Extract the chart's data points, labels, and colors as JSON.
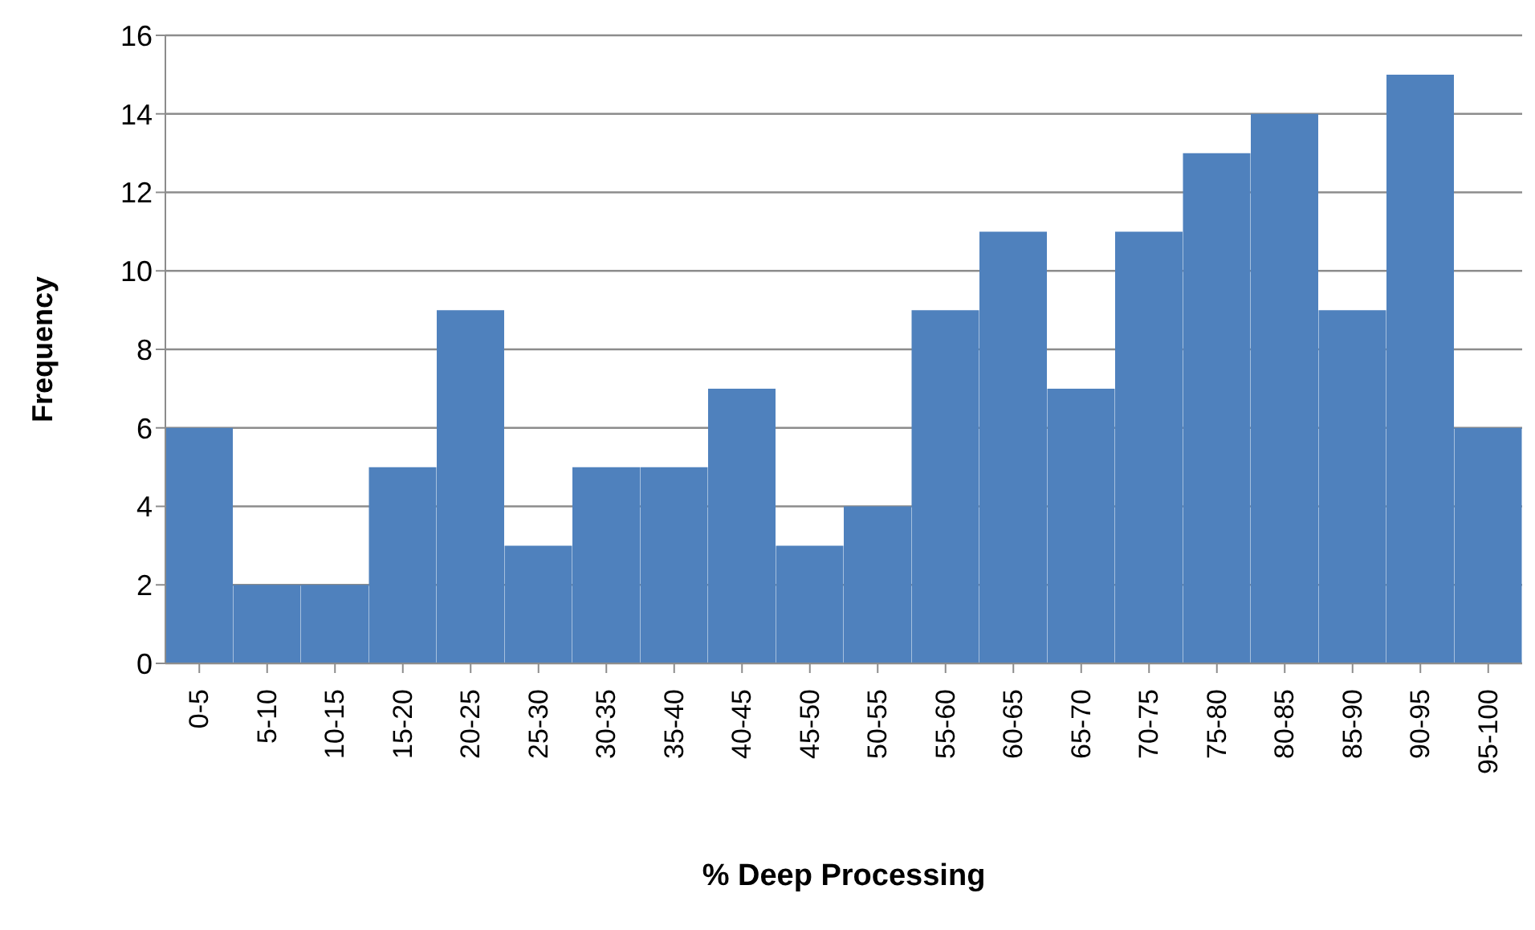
{
  "chart_data": {
    "type": "bar",
    "xlabel": "% Deep Processing",
    "ylabel": "Frequency",
    "categories": [
      "0-5",
      "5-10",
      "10-15",
      "15-20",
      "20-25",
      "25-30",
      "30-35",
      "35-40",
      "40-45",
      "45-50",
      "50-55",
      "55-60",
      "60-65",
      "65-70",
      "70-75",
      "75-80",
      "80-85",
      "85-90",
      "90-95",
      "95-100"
    ],
    "values": [
      6,
      2,
      2,
      5,
      9,
      3,
      5,
      5,
      7,
      3,
      4,
      9,
      11,
      7,
      11,
      13,
      14,
      9,
      15,
      6
    ],
    "color": "#4f81bd",
    "ylim": [
      0,
      16
    ],
    "yticks": [
      0,
      2,
      4,
      6,
      8,
      10,
      12,
      14,
      16
    ],
    "grid": "y"
  }
}
